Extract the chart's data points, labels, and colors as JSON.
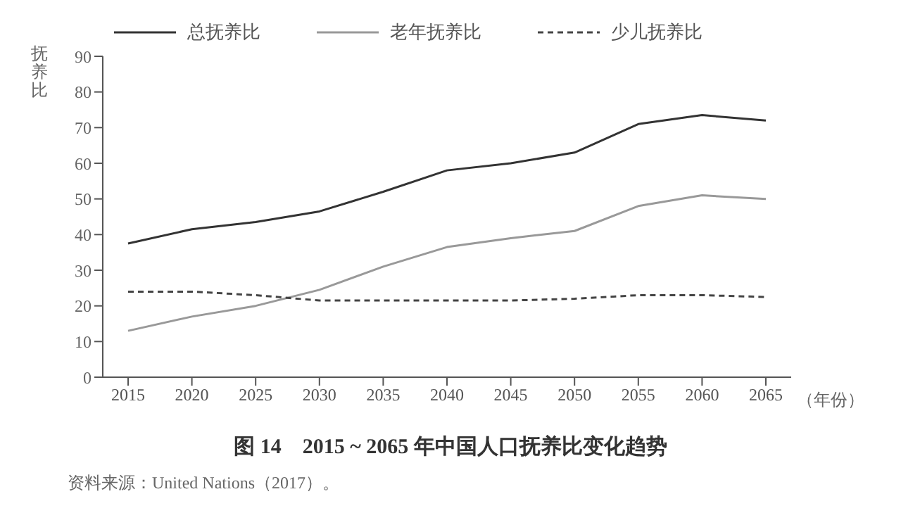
{
  "chart_data": {
    "type": "line",
    "title": "图 14　2015 ~ 2065 年中国人口抚养比变化趋势",
    "ylabel": "抚养比",
    "xlabel": "（年份）",
    "categories": [
      "2015",
      "2020",
      "2025",
      "2030",
      "2035",
      "2040",
      "2045",
      "2050",
      "2055",
      "2060",
      "2065"
    ],
    "series": [
      {
        "name": "总抚养比",
        "color": "#333333",
        "line_style": "solid",
        "values": [
          37.5,
          41.5,
          43.5,
          46.5,
          52,
          58,
          60,
          63,
          71,
          73.5,
          72
        ]
      },
      {
        "name": "老年抚养比",
        "color": "#999999",
        "line_style": "solid",
        "values": [
          13,
          17,
          20,
          24.5,
          31,
          36.5,
          39,
          41,
          48,
          51,
          50
        ]
      },
      {
        "name": "少儿抚养比",
        "color": "#444444",
        "line_style": "dashed",
        "values": [
          24,
          24,
          23,
          21.5,
          21.5,
          21.5,
          21.5,
          22,
          23,
          23,
          22.5
        ]
      }
    ],
    "ylim": [
      0,
      90
    ],
    "yticks": [
      0,
      10,
      20,
      30,
      40,
      50,
      60,
      70,
      80,
      90
    ],
    "grid": false,
    "legend": "top",
    "marker": "none",
    "annotations": [
      "资料来源：United Nations（2017）。"
    ]
  }
}
